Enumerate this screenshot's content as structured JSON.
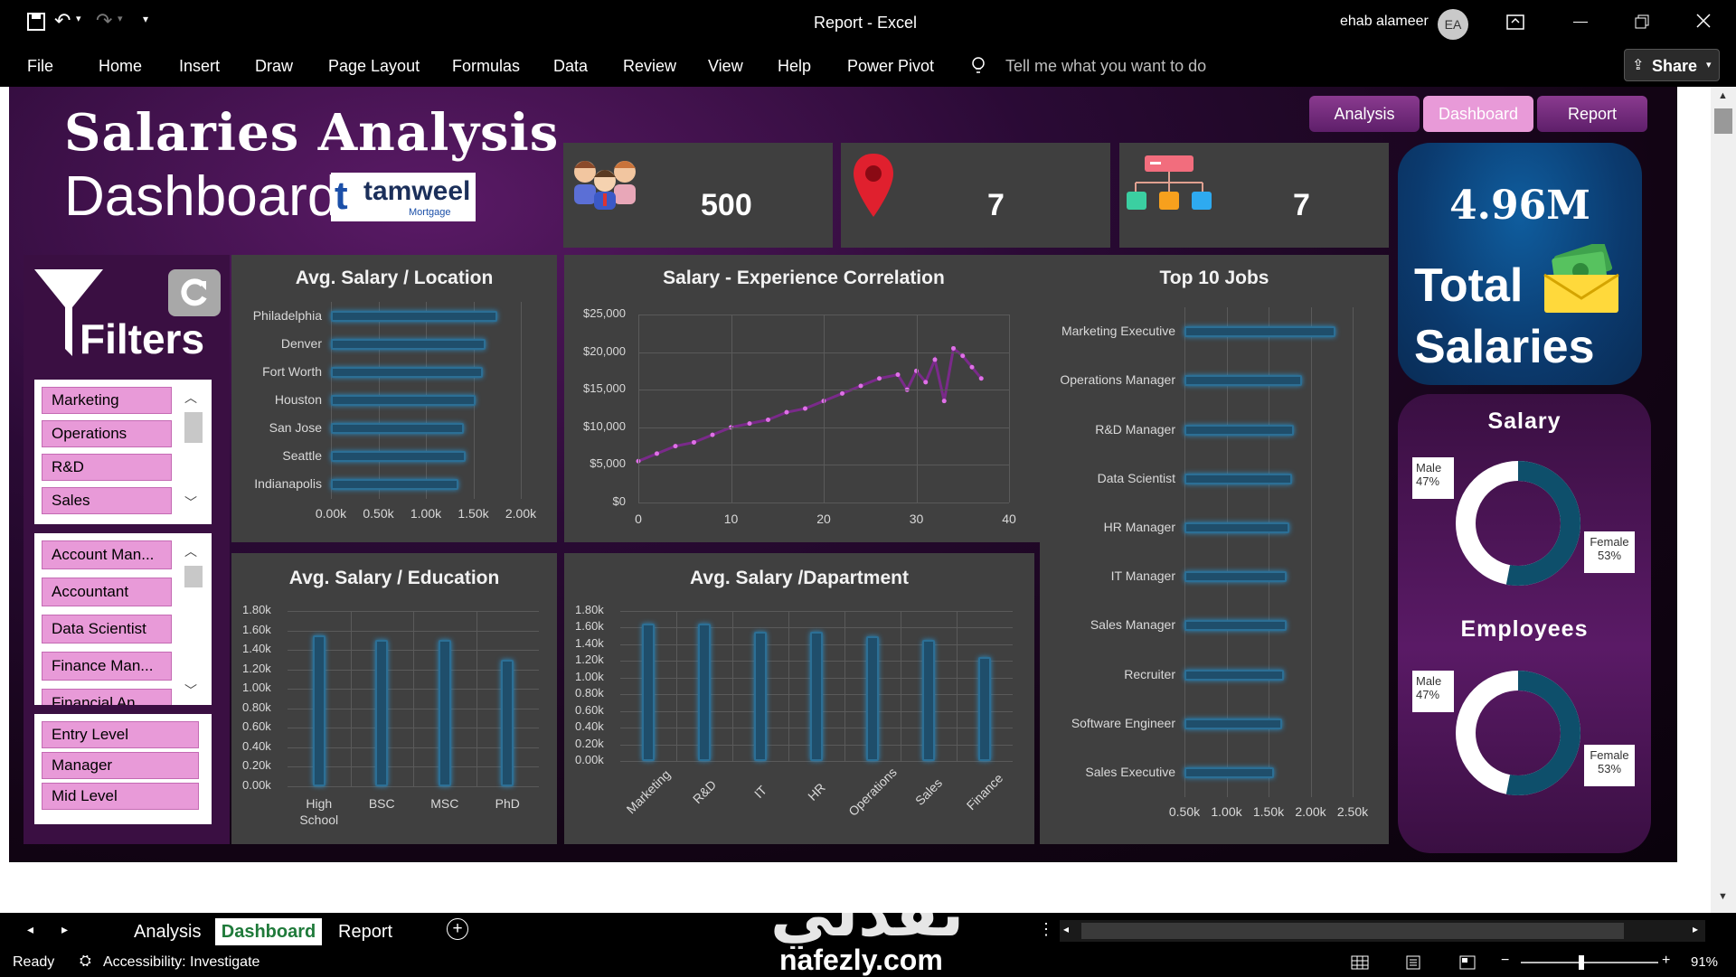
{
  "window": {
    "title": "Report  -  Excel",
    "user": "ehab alameer",
    "avatar": "EA",
    "share": "Share"
  },
  "menu": [
    "File",
    "Home",
    "Insert",
    "Draw",
    "Page Layout",
    "Formulas",
    "Data",
    "Review",
    "View",
    "Help",
    "Power Pivot"
  ],
  "tell_me": "Tell me what you want to do",
  "dashboard": {
    "title1": "Salaries Analysis",
    "title2": "Dashboard",
    "logo": "tamweel",
    "logo_sub": "Mortgage",
    "nav": [
      "Analysis",
      "Dashboard",
      "Report"
    ],
    "kpis": {
      "employees": "500",
      "locations": "7",
      "departments": "7"
    },
    "total": {
      "value": "4.96M",
      "label1": "Total",
      "label2": "Salaries"
    },
    "filters_title": "Filters",
    "slicer_dept": [
      "Marketing",
      "Operations",
      "R&D",
      "Sales"
    ],
    "slicer_job": [
      "Account Man...",
      "Accountant",
      "Data Scientist",
      "Finance Man...",
      "Financial An..."
    ],
    "slicer_level": [
      "Entry Level",
      "Manager",
      "Mid Level"
    ],
    "salary_title": "Salary",
    "employees_title": "Employees",
    "gender": {
      "male": "Male",
      "male_pct": "47%",
      "female": "Female",
      "female_pct": "53%"
    }
  },
  "chart_data": [
    {
      "type": "bar",
      "title": "Avg. Salary / Location",
      "categories": [
        "Philadelphia",
        "Denver",
        "Fort Worth",
        "Houston",
        "San Jose",
        "Seattle",
        "Indianapolis"
      ],
      "values": [
        1750,
        1630,
        1600,
        1520,
        1400,
        1420,
        1340
      ],
      "ticks": [
        "0.00k",
        "0.50k",
        "1.00k",
        "1.50k",
        "2.00k"
      ],
      "xlim": [
        0,
        2000
      ]
    },
    {
      "type": "line",
      "title": "Salary - Experience Correlation",
      "x": [
        0,
        2,
        4,
        6,
        8,
        10,
        12,
        14,
        16,
        18,
        20,
        22,
        24,
        26,
        28,
        29,
        30,
        31,
        32,
        33,
        34,
        35,
        36,
        37
      ],
      "y": [
        5500,
        6500,
        7500,
        8000,
        9000,
        10000,
        10500,
        11000,
        12000,
        12500,
        13500,
        14500,
        15500,
        16500,
        17000,
        15000,
        17500,
        16000,
        19000,
        13500,
        20500,
        19500,
        18000,
        16500
      ],
      "yticks": [
        "$25,000",
        "$20,000",
        "$15,000",
        "$10,000",
        "$5,000",
        "$0"
      ],
      "xticks": [
        "0",
        "10",
        "20",
        "30",
        "40"
      ],
      "ylim": [
        0,
        25000
      ],
      "xlim": [
        0,
        40
      ]
    },
    {
      "type": "bar",
      "title": "Top 10 Jobs",
      "categories": [
        "Marketing Executive",
        "Operations Manager",
        "R&D Manager",
        "Data Scientist",
        "HR Manager",
        "IT Manager",
        "Sales Manager",
        "Recruiter",
        "Software Engineer",
        "Sales Executive"
      ],
      "values": [
        2300,
        1900,
        1800,
        1780,
        1750,
        1720,
        1720,
        1680,
        1660,
        1560
      ],
      "ticks": [
        "0.50k",
        "1.00k",
        "1.50k",
        "2.00k",
        "2.50k"
      ],
      "xlim": [
        500,
        2500
      ]
    },
    {
      "type": "bar",
      "title": "Avg. Salary / Education",
      "categories": [
        "High School",
        "BSC",
        "MSC",
        "PhD"
      ],
      "values": [
        1550,
        1500,
        1500,
        1300
      ],
      "ticks": [
        "1.80k",
        "1.60k",
        "1.40k",
        "1.20k",
        "1.00k",
        "0.80k",
        "0.60k",
        "0.40k",
        "0.20k",
        "0.00k"
      ],
      "ylim": [
        0,
        1800
      ]
    },
    {
      "type": "bar",
      "title": "Avg. Salary /Dapartment",
      "categories": [
        "Marketing",
        "R&D",
        "IT",
        "HR",
        "Operations",
        "Sales",
        "Finance"
      ],
      "values": [
        1650,
        1650,
        1550,
        1550,
        1500,
        1450,
        1250
      ],
      "ticks": [
        "1.80k",
        "1.60k",
        "1.40k",
        "1.20k",
        "1.00k",
        "0.80k",
        "0.60k",
        "0.40k",
        "0.20k",
        "0.00k"
      ],
      "ylim": [
        0,
        1800
      ]
    },
    {
      "type": "pie",
      "title": "Salary",
      "categories": [
        "Male",
        "Female"
      ],
      "values": [
        47,
        53
      ]
    },
    {
      "type": "pie",
      "title": "Employees",
      "categories": [
        "Male",
        "Female"
      ],
      "values": [
        47,
        53
      ]
    }
  ],
  "sheet_tabs": [
    "Analysis",
    "Dashboard",
    "Report"
  ],
  "status": {
    "ready": "Ready",
    "accessibility": "Accessibility: Investigate",
    "zoom": "91%"
  },
  "watermark": {
    "arabic": "نفذلي",
    "latin": "nafezly.com"
  }
}
